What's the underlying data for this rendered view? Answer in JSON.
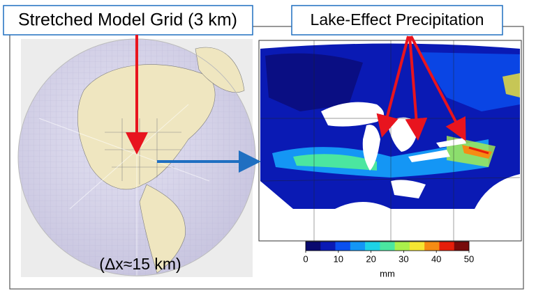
{
  "left_panel": {
    "title": "Stretched Model Grid (3 km)",
    "annotation": "(Δx≈15 km)"
  },
  "right_panel": {
    "title": "Lake-Effect Precipitation",
    "colorbar": {
      "xlim": [
        0,
        50
      ],
      "xticks": [
        0,
        10,
        20,
        30,
        40,
        50
      ],
      "label": "mm",
      "colors": [
        "#0a0a6e",
        "#0a1ab4",
        "#0a50f0",
        "#1496f5",
        "#1ed2e6",
        "#4be6a0",
        "#aaf04b",
        "#f5e632",
        "#f58c14",
        "#e61e0a",
        "#780a0a"
      ]
    }
  }
}
